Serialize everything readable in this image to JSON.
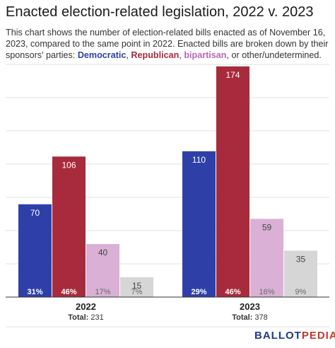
{
  "title": "Enacted election-related legislation, 2022 v. 2023",
  "subtitle": {
    "intro": "This chart shows the number of election-related bills enacted as of November 16, 2023, compared to the same point in 2022. Enacted bills are broken down by their sponsors' parties: ",
    "dem": "Democratic",
    "sep1": ", ",
    "rep": "Republican",
    "sep2": ", ",
    "bip": "bipartisan",
    "tail": ", or other/undetermined."
  },
  "logo": {
    "part1": "BALLOT",
    "part2": "PEDIA"
  },
  "colors": {
    "democratic": "#2e40a8",
    "republican": "#a72b3c",
    "bipartisan": "#dab0d7",
    "other": "#d6d6d6",
    "grid": "#e2e2e2",
    "axis": "#333333"
  },
  "chart_data": {
    "type": "bar",
    "categories": [
      "2022",
      "2023"
    ],
    "totals": [
      "Total: 231",
      "Total: 378"
    ],
    "series": [
      {
        "name": "Democratic",
        "values": [
          70,
          110
        ],
        "percents": [
          "31%",
          "29%"
        ]
      },
      {
        "name": "Republican",
        "values": [
          106,
          174
        ],
        "percents": [
          "46%",
          "46%"
        ]
      },
      {
        "name": "bipartisan",
        "values": [
          40,
          59
        ],
        "percents": [
          "17%",
          "16%"
        ]
      },
      {
        "name": "other/undetermined",
        "values": [
          15,
          35
        ],
        "percents": [
          "7%",
          "9%"
        ]
      }
    ],
    "ylim": [
      0,
      175
    ],
    "grid": true,
    "legend": "none",
    "xlabel": "",
    "ylabel": ""
  }
}
